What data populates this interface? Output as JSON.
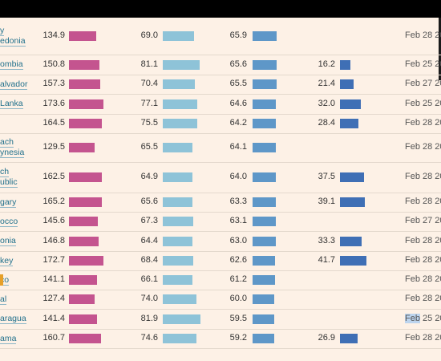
{
  "rows": [
    {
      "country": [
        "y",
        "edonia"
      ],
      "v1": "134.9",
      "v2": "69.0",
      "v3": "65.9",
      "v4": "",
      "date": "Feb 28 202",
      "f1": 0.67,
      "f2": 0.63,
      "f3": 0.62,
      "f4": 0
    },
    {
      "country": [
        "ombia"
      ],
      "v1": "150.8",
      "v2": "81.1",
      "v3": "65.6",
      "v4": "16.2",
      "date": "Feb 25 202",
      "f1": 0.75,
      "f2": 0.74,
      "f3": 0.62,
      "f4": 0.33
    },
    {
      "country": [
        "alvador"
      ],
      "v1": "157.3",
      "v2": "70.4",
      "v3": "65.5",
      "v4": "21.4",
      "date": "Feb 27 202",
      "f1": 0.78,
      "f2": 0.64,
      "f3": 0.62,
      "f4": 0.43
    },
    {
      "country": [
        "Lanka"
      ],
      "v1": "173.6",
      "v2": "77.1",
      "v3": "64.6",
      "v4": "32.0",
      "date": "Feb 25 202",
      "f1": 0.86,
      "f2": 0.7,
      "f3": 0.61,
      "f4": 0.64
    },
    {
      "country": [
        ""
      ],
      "v1": "164.5",
      "v2": "75.5",
      "v3": "64.2",
      "v4": "28.4",
      "date": "Feb 28 202",
      "f1": 0.82,
      "f2": 0.69,
      "f3": 0.61,
      "f4": 0.57
    },
    {
      "country": [
        "ach",
        "ynesia"
      ],
      "v1": "129.5",
      "v2": "65.5",
      "v3": "64.1",
      "v4": "",
      "date": "Feb 28 202",
      "f1": 0.64,
      "f2": 0.6,
      "f3": 0.61,
      "f4": 0
    },
    {
      "country": [
        "ch",
        "ublic"
      ],
      "v1": "162.5",
      "v2": "64.9",
      "v3": "64.0",
      "v4": "37.5",
      "date": "Feb 28 202",
      "f1": 0.81,
      "f2": 0.59,
      "f3": 0.6,
      "f4": 0.75
    },
    {
      "country": [
        "gary"
      ],
      "v1": "165.2",
      "v2": "65.6",
      "v3": "63.3",
      "v4": "39.1",
      "date": "Feb 28 202",
      "f1": 0.82,
      "f2": 0.6,
      "f3": 0.6,
      "f4": 0.78
    },
    {
      "country": [
        "occo"
      ],
      "v1": "145.6",
      "v2": "67.3",
      "v3": "63.1",
      "v4": "",
      "date": "Feb 27 202",
      "f1": 0.72,
      "f2": 0.61,
      "f3": 0.6,
      "f4": 0
    },
    {
      "country": [
        "onia"
      ],
      "v1": "146.8",
      "v2": "64.4",
      "v3": "63.0",
      "v4": "33.3",
      "date": "Feb 28 202",
      "f1": 0.73,
      "f2": 0.59,
      "f3": 0.6,
      "f4": 0.67
    },
    {
      "country": [
        "key"
      ],
      "v1": "172.7",
      "v2": "68.4",
      "v3": "62.6",
      "v4": "41.7",
      "date": "Feb 28 202",
      "f1": 0.86,
      "f2": 0.62,
      "f3": 0.59,
      "f4": 0.83
    },
    {
      "country": [
        "co"
      ],
      "v1": "141.1",
      "v2": "66.1",
      "v3": "61.2",
      "v4": "",
      "date": "Feb 28 202",
      "f1": 0.7,
      "f2": 0.6,
      "f3": 0.58,
      "f4": 0
    },
    {
      "country": [
        "al"
      ],
      "v1": "127.4",
      "v2": "74.0",
      "v3": "60.0",
      "v4": "",
      "date": "Feb 28 202",
      "f1": 0.63,
      "f2": 0.67,
      "f3": 0.57,
      "f4": 0
    },
    {
      "country": [
        "aragua"
      ],
      "v1": "141.4",
      "v2": "81.9",
      "v3": "59.5",
      "v4": "",
      "date": "Feb 25 202",
      "f1": 0.7,
      "f2": 0.75,
      "f3": 0.56,
      "f4": 0
    },
    {
      "country": [
        "ama"
      ],
      "v1": "160.7",
      "v2": "74.6",
      "v3": "59.2",
      "v4": "26.9",
      "date": "Feb 28 202",
      "f1": 0.8,
      "f2": 0.68,
      "f3": 0.56,
      "f4": 0.54
    }
  ],
  "colors": {
    "col1": "#c4548f",
    "col2": "#8ec3d8",
    "col3": "#5e97c8",
    "col4": "#3f6fb5"
  }
}
